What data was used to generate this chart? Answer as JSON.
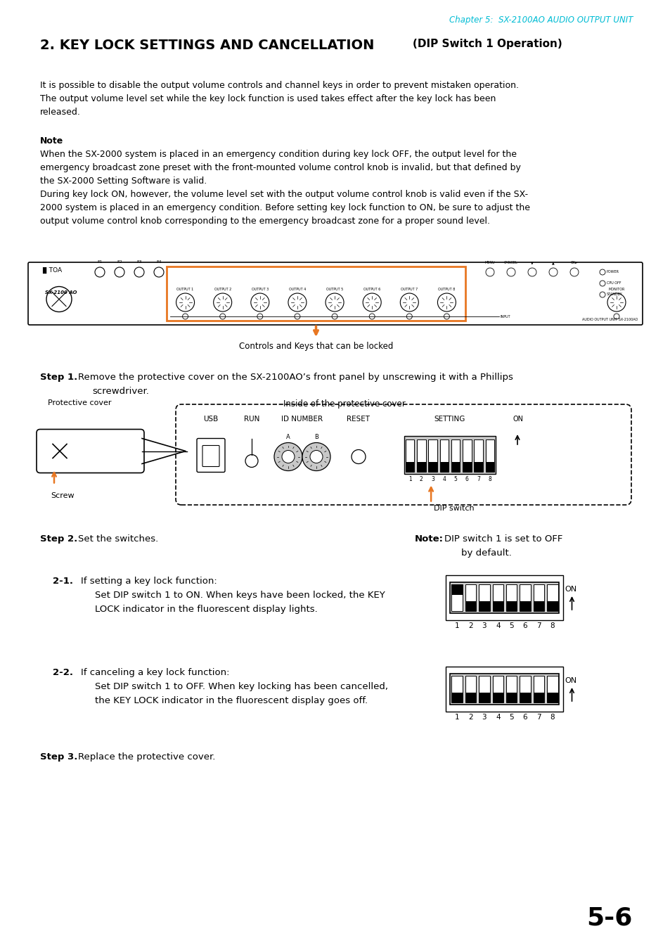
{
  "chapter_header": "Chapter 5:  SX-2100AO AUDIO OUTPUT UNIT",
  "section_title_bold": "2. KEY LOCK SETTINGS AND CANCELLATION ",
  "section_title_normal": "(DIP Switch 1 Operation)",
  "caption_controls": "Controls and Keys that can be locked",
  "inside_label": "Inside of the protective cover",
  "protective_label": "Protective cover",
  "screw_label": "Screw",
  "dip_label": "DIP switch",
  "page_num": "5-6",
  "bg_color": "#ffffff",
  "text_color": "#000000",
  "chapter_color": "#00bcd4",
  "orange_color": "#e87722"
}
